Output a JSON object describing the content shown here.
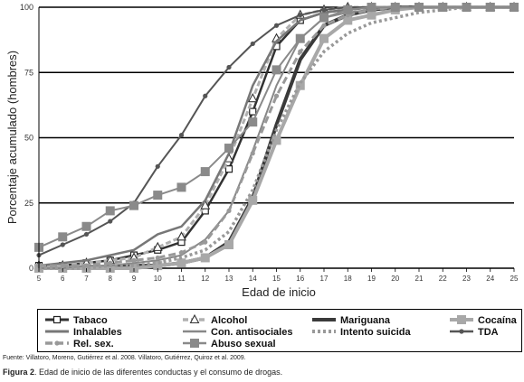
{
  "chart_data": {
    "type": "line",
    "title": "",
    "xlabel": "Edad de inicio",
    "ylabel": "Porcentaje acumulado (hombres)",
    "x": [
      5,
      6,
      7,
      8,
      9,
      10,
      11,
      12,
      13,
      14,
      15,
      16,
      17,
      18,
      19,
      20,
      21,
      22,
      23,
      24,
      25
    ],
    "xlim": [
      5,
      25
    ],
    "ylim": [
      0,
      100
    ],
    "yticks": [
      0,
      25,
      50,
      75,
      100
    ],
    "grid": "horizontal",
    "legend_position": "bottom",
    "series": [
      {
        "name": "Tabaco",
        "color": "#333333",
        "dash": "",
        "width": 2.5,
        "marker": "square-open",
        "values": [
          1,
          1,
          2,
          3,
          5,
          7,
          10,
          22,
          38,
          60,
          85,
          95,
          98,
          99,
          100,
          100,
          100,
          100,
          100,
          100,
          100
        ]
      },
      {
        "name": "Alcohol",
        "color": "#b0b0b0",
        "dash": "6,3",
        "width": 3,
        "marker": "triangle-open",
        "values": [
          1,
          1,
          2,
          3,
          4,
          8,
          12,
          24,
          42,
          65,
          88,
          97,
          99,
          100,
          100,
          100,
          100,
          100,
          100,
          100,
          100
        ]
      },
      {
        "name": "Mariguana",
        "color": "#3a3a3a",
        "dash": "",
        "width": 4,
        "marker": "none",
        "values": [
          0,
          0,
          0,
          0,
          1,
          1,
          2,
          4,
          10,
          27,
          55,
          80,
          93,
          97,
          99,
          100,
          100,
          100,
          100,
          100,
          100
        ]
      },
      {
        "name": "Cocaína",
        "color": "#a8a8a8",
        "dash": "",
        "width": 4,
        "marker": "square",
        "values": [
          0,
          0,
          0,
          0,
          0,
          1,
          2,
          4,
          9,
          26,
          49,
          70,
          88,
          95,
          97,
          99,
          100,
          100,
          100,
          100,
          100
        ]
      },
      {
        "name": "Inhalables",
        "color": "#777777",
        "dash": "",
        "width": 2.5,
        "marker": "none",
        "values": [
          1,
          2,
          3,
          5,
          7,
          13,
          16,
          26,
          44,
          70,
          87,
          95,
          98,
          99,
          100,
          100,
          100,
          100,
          100,
          100,
          100
        ]
      },
      {
        "name": "Con. antisociales",
        "color": "#888888",
        "dash": "",
        "width": 2,
        "marker": "none",
        "values": [
          0,
          0,
          1,
          1,
          2,
          3,
          5,
          11,
          22,
          45,
          70,
          88,
          96,
          98,
          99,
          100,
          100,
          100,
          100,
          100,
          100
        ]
      },
      {
        "name": "Intento suicida",
        "color": "#999999",
        "dash": "3,3",
        "width": 3.5,
        "marker": "none",
        "values": [
          0,
          0,
          0,
          1,
          1,
          2,
          4,
          7,
          14,
          30,
          53,
          71,
          83,
          90,
          94,
          96,
          98,
          99,
          100,
          100,
          100
        ]
      },
      {
        "name": "TDA",
        "color": "#555555",
        "dash": "",
        "width": 2,
        "marker": "dot",
        "values": [
          5,
          9,
          13,
          18,
          25,
          39,
          51,
          66,
          77,
          86,
          93,
          97,
          99,
          100,
          100,
          100,
          100,
          100,
          100,
          100,
          100
        ]
      },
      {
        "name": "Rel. sex.",
        "color": "#999999",
        "dash": "8,4",
        "width": 3,
        "marker": "dot",
        "values": [
          1,
          1,
          1,
          2,
          3,
          4,
          6,
          10,
          22,
          44,
          66,
          83,
          93,
          97,
          99,
          100,
          100,
          100,
          100,
          100,
          100
        ]
      },
      {
        "name": "Abuso sexual",
        "color": "#8a8a8a",
        "dash": "",
        "width": 2,
        "marker": "square",
        "values": [
          8,
          12,
          16,
          22,
          24,
          28,
          31,
          37,
          46,
          56,
          76,
          88,
          96,
          99,
          100,
          100,
          100,
          100,
          100,
          100,
          100
        ]
      }
    ]
  },
  "footer": {
    "source": "Fuente: Villatoro, Moreno, Gutiérrez et al. 2008. Villatoro, Gutiérrez, Quiroz et al. 2009.",
    "caption_label": "Figura 2",
    "caption_text": ". Edad de inicio de las diferentes conductas y el consumo de drogas."
  }
}
